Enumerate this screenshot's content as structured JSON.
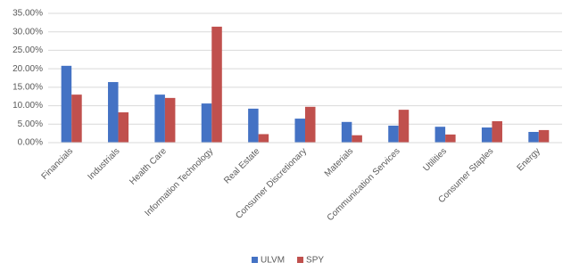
{
  "chart_data": {
    "type": "bar",
    "categories": [
      "Financials",
      "Industrials",
      "Health Care",
      "Information Technology",
      "Real Estate",
      "Consumer Discretionary",
      "Materials",
      "Communication Services",
      "Utilities",
      "Consumer Staples",
      "Energy"
    ],
    "series": [
      {
        "name": "ULVM",
        "color": "#4472c4",
        "values": [
          20.8,
          16.4,
          13.0,
          10.6,
          9.2,
          6.5,
          5.6,
          4.6,
          4.3,
          4.1,
          2.9
        ]
      },
      {
        "name": "SPY",
        "color": "#c0504d",
        "values": [
          13.0,
          8.2,
          12.1,
          31.4,
          2.3,
          9.7,
          2.0,
          8.9,
          2.2,
          5.8,
          3.4
        ]
      }
    ],
    "ylim": [
      0,
      35
    ],
    "yticks": [
      {
        "value": 0,
        "label": "0.00%"
      },
      {
        "value": 5,
        "label": "5.00%"
      },
      {
        "value": 10,
        "label": "10.00%"
      },
      {
        "value": 15,
        "label": "15.00%"
      },
      {
        "value": 20,
        "label": "20.00%"
      },
      {
        "value": 25,
        "label": "25.00%"
      },
      {
        "value": 30,
        "label": "30.00%"
      },
      {
        "value": 35,
        "label": "35.00%"
      }
    ],
    "grid": true,
    "legend": "bottom"
  }
}
